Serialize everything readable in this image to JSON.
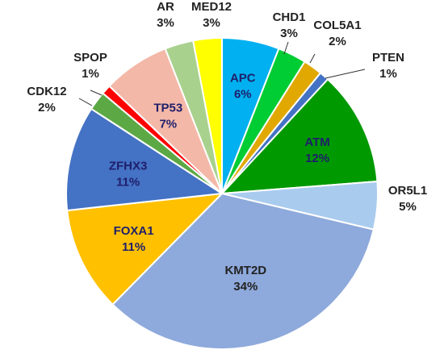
{
  "chart_data": {
    "type": "pie",
    "title": "",
    "slices": [
      {
        "label": "APC",
        "value": 6,
        "pct_label": "6%",
        "color": "#00B0F0",
        "text_color": "#1F1F6B",
        "inside": true
      },
      {
        "label": "CHD1",
        "value": 3,
        "pct_label": "3%",
        "color": "#00CC33",
        "text_color": "#222222",
        "inside": false
      },
      {
        "label": "COL5A1",
        "value": 2,
        "pct_label": "2%",
        "color": "#E0A800",
        "text_color": "#222222",
        "inside": false
      },
      {
        "label": "PTEN",
        "value": 1,
        "pct_label": "1%",
        "color": "#4472C4",
        "text_color": "#222222",
        "inside": false
      },
      {
        "label": "ATM",
        "value": 12,
        "pct_label": "12%",
        "color": "#009900",
        "text_color": "#1F1F6B",
        "inside": true
      },
      {
        "label": "OR5L1",
        "value": 5,
        "pct_label": "5%",
        "color": "#A9CCEE",
        "text_color": "#222222",
        "inside": false
      },
      {
        "label": "KMT2D",
        "value": 34,
        "pct_label": "34%",
        "color": "#8EA9DB",
        "text_color": "#222222",
        "inside": true
      },
      {
        "label": "FOXA1",
        "value": 11,
        "pct_label": "11%",
        "color": "#FFC000",
        "text_color": "#1F1F6B",
        "inside": true
      },
      {
        "label": "ZFHX3",
        "value": 11,
        "pct_label": "11%",
        "color": "#4472C4",
        "text_color": "#1F1F6B",
        "inside": true
      },
      {
        "label": "CDK12",
        "value": 2,
        "pct_label": "2%",
        "color": "#5CA845",
        "text_color": "#222222",
        "inside": false
      },
      {
        "label": "SPOP",
        "value": 1,
        "pct_label": "1%",
        "color": "#FF0000",
        "text_color": "#222222",
        "inside": false
      },
      {
        "label": "TP53",
        "value": 7,
        "pct_label": "7%",
        "color": "#F4B8A8",
        "text_color": "#1F1F6B",
        "inside": true
      },
      {
        "label": "AR",
        "value": 3,
        "pct_label": "3%",
        "color": "#A9D18E",
        "text_color": "#222222",
        "inside": false
      },
      {
        "label": "MED12",
        "value": 3,
        "pct_label": "3%",
        "color": "#FFFF00",
        "text_color": "#222222",
        "inside": false
      }
    ]
  }
}
